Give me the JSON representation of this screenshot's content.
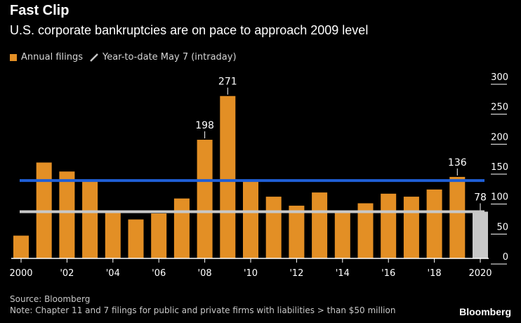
{
  "title": "Fast Clip",
  "subtitle": "U.S. corporate bankruptcies are on pace to approach 2009 level",
  "legend": {
    "annual": "Annual filings",
    "ytd": "Year-to-date May 7 (intraday)"
  },
  "colors": {
    "annual": "#e38f25",
    "ytd": "#c8c8c8",
    "blue_line": "#1f5fd6",
    "gray_line": "#c8c8c8",
    "axis_text": "#ffffff",
    "tick_line": "#ffffff"
  },
  "footer": {
    "source": "Source: Bloomberg",
    "note": "Note: Chapter 11 and 7 filings for public and private firms with liabilities > than $50 million"
  },
  "brand": "Bloomberg",
  "chart_data": {
    "type": "bar",
    "categories": [
      "2000",
      "2001",
      "2002",
      "2003",
      "2004",
      "2005",
      "2006",
      "2007",
      "2008",
      "2009",
      "2010",
      "2011",
      "2012",
      "2013",
      "2014",
      "2015",
      "2016",
      "2017",
      "2018",
      "2019",
      "2020"
    ],
    "x_tick_labels": [
      "2000",
      "'02",
      "'04",
      "'06",
      "'08",
      "'10",
      "'12",
      "'14",
      "'16",
      "'18",
      "2020"
    ],
    "x_tick_years": [
      2000,
      2002,
      2004,
      2006,
      2008,
      2010,
      2012,
      2014,
      2016,
      2018,
      2020
    ],
    "series": [
      {
        "name": "Annual filings",
        "values": [
          38,
          160,
          145,
          130,
          80,
          65,
          75,
          100,
          198,
          271,
          130,
          103,
          88,
          110,
          80,
          92,
          108,
          103,
          115,
          136,
          null
        ]
      },
      {
        "name": "Year-to-date May 7 (intraday)",
        "values": [
          null,
          null,
          null,
          null,
          null,
          null,
          null,
          null,
          null,
          null,
          null,
          null,
          null,
          null,
          null,
          null,
          null,
          null,
          null,
          null,
          78
        ]
      }
    ],
    "reference_lines": [
      {
        "value": 130,
        "color": "#1f5fd6"
      },
      {
        "value": 78,
        "color": "#c8c8c8"
      }
    ],
    "data_labels": [
      {
        "category": "2008",
        "text": "198"
      },
      {
        "category": "2009",
        "text": "271"
      },
      {
        "category": "2019",
        "text": "136"
      },
      {
        "category": "2020",
        "text": "78"
      }
    ],
    "yticks": [
      0,
      50,
      100,
      150,
      200,
      250,
      300
    ],
    "ylim": [
      0,
      300
    ],
    "y_axis_position": "right",
    "grid": false
  }
}
